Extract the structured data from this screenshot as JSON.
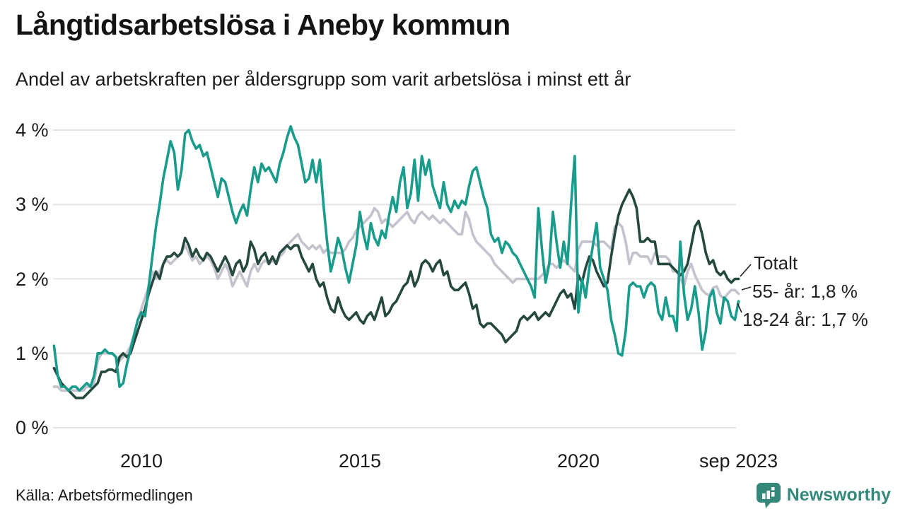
{
  "header": {
    "title": "Långtidsarbetslösa i Aneby kommun",
    "subtitle": "Andel av arbetskraften per åldersgrupp som varit arbetslösa i minst ett år"
  },
  "footer": {
    "source": "Källa: Arbetsförmedlingen",
    "logo_text": "Newsworthy",
    "logo_color": "#35897b"
  },
  "colors": {
    "total": "#26493f",
    "age55": "#c4c2cd",
    "age1824": "#1a9c8c",
    "grid": "#e4e4e4",
    "text": "#1a1a1a"
  },
  "chart_data": {
    "type": "line",
    "title": "Långtidsarbetslösa i Aneby kommun",
    "subtitle": "Andel av arbetskraften per åldersgrupp som varit arbetslösa i minst ett år",
    "x_unit": "month",
    "x_start": "2008-01",
    "x_end": "2023-09",
    "ylim": [
      0,
      4.3
    ],
    "grid": true,
    "legend_position": "end-of-line labels, right side",
    "yticks": [
      {
        "value": 0,
        "label": "0 %"
      },
      {
        "value": 1,
        "label": "1 %"
      },
      {
        "value": 2,
        "label": "2 %"
      },
      {
        "value": 3,
        "label": "3 %"
      },
      {
        "value": 4,
        "label": "4 %"
      }
    ],
    "xticks": [
      {
        "month_index": 24,
        "label": "2010"
      },
      {
        "month_index": 84,
        "label": "2015"
      },
      {
        "month_index": 144,
        "label": "2020"
      },
      {
        "month_index": 188,
        "label": "sep 2023"
      }
    ],
    "series": [
      {
        "name": "55- år",
        "end_label": "55- år: 1,8 %",
        "last_value": "1,8 %",
        "color": "#c4c2cd",
        "values": [
          0.55,
          0.55,
          0.5,
          0.5,
          0.5,
          0.5,
          0.5,
          0.5,
          0.5,
          0.55,
          0.55,
          0.6,
          0.9,
          1.0,
          1.0,
          1.0,
          1.0,
          0.95,
          0.9,
          0.95,
          1.0,
          1.1,
          1.25,
          1.45,
          1.6,
          1.75,
          1.9,
          2.1,
          2.0,
          2.1,
          2.2,
          2.25,
          2.2,
          2.25,
          2.3,
          2.35,
          2.45,
          2.35,
          2.25,
          2.3,
          2.2,
          2.25,
          2.3,
          2.25,
          2.15,
          2.0,
          2.1,
          2.2,
          2.1,
          1.9,
          2.0,
          2.1,
          2.0,
          1.9,
          2.1,
          2.2,
          2.1,
          2.2,
          2.25,
          2.2,
          2.25,
          2.2,
          2.3,
          2.35,
          2.45,
          2.5,
          2.55,
          2.6,
          2.5,
          2.45,
          2.4,
          2.45,
          2.4,
          2.45,
          2.35,
          2.4,
          2.35,
          2.35,
          2.35,
          2.35,
          2.4,
          2.5,
          2.55,
          2.65,
          2.7,
          2.75,
          2.8,
          2.85,
          2.95,
          2.9,
          2.75,
          2.8,
          2.75,
          2.7,
          2.75,
          2.8,
          2.85,
          2.9,
          2.8,
          2.75,
          2.85,
          2.9,
          2.85,
          2.8,
          2.85,
          2.8,
          2.75,
          2.8,
          2.75,
          2.7,
          2.65,
          2.6,
          2.6,
          2.9,
          2.8,
          2.6,
          2.5,
          2.45,
          2.4,
          2.35,
          2.3,
          2.2,
          2.15,
          2.1,
          2.05,
          2.0,
          1.95,
          2.0,
          2.0,
          2.0,
          2.0,
          2.0,
          2.0,
          2.0,
          2.05,
          2.1,
          2.2,
          2.2,
          2.15,
          2.2,
          2.25,
          2.2,
          2.15,
          2.1,
          2.4,
          2.5,
          2.5,
          2.5,
          2.5,
          2.45,
          2.5,
          2.5,
          2.45,
          2.4,
          2.7,
          2.75,
          2.7,
          2.5,
          2.2,
          2.35,
          2.35,
          2.3,
          2.3,
          2.3,
          2.2,
          2.35,
          2.3,
          2.3,
          2.3,
          2.25,
          2.1,
          2.1,
          2.0,
          1.9,
          2.1,
          2.2,
          2.05,
          1.95,
          1.85,
          1.8,
          1.78,
          1.88,
          1.9,
          1.78,
          1.73,
          1.8,
          1.85,
          1.85,
          1.8
        ]
      },
      {
        "name": "Totalt",
        "end_label": "Totalt",
        "color": "#26493f",
        "values": [
          0.8,
          0.7,
          0.6,
          0.55,
          0.5,
          0.45,
          0.4,
          0.4,
          0.4,
          0.45,
          0.5,
          0.55,
          0.6,
          0.75,
          0.75,
          0.78,
          0.78,
          0.75,
          0.95,
          1.0,
          0.95,
          1.0,
          1.15,
          1.3,
          1.45,
          1.6,
          1.8,
          1.95,
          2.1,
          2.0,
          2.2,
          2.3,
          2.3,
          2.35,
          2.3,
          2.35,
          2.55,
          2.45,
          2.3,
          2.4,
          2.3,
          2.25,
          2.35,
          2.3,
          2.2,
          2.1,
          2.2,
          2.3,
          2.2,
          2.05,
          2.2,
          2.25,
          2.1,
          2.2,
          2.5,
          2.4,
          2.2,
          2.3,
          2.35,
          2.2,
          2.3,
          2.2,
          2.35,
          2.4,
          2.45,
          2.4,
          2.45,
          2.45,
          2.3,
          2.2,
          2.1,
          2.2,
          2.0,
          1.9,
          1.95,
          1.75,
          1.6,
          1.55,
          1.75,
          1.6,
          1.5,
          1.45,
          1.5,
          1.55,
          1.45,
          1.4,
          1.5,
          1.55,
          1.45,
          1.6,
          1.75,
          1.5,
          1.55,
          1.65,
          1.7,
          1.8,
          1.9,
          1.95,
          2.1,
          1.9,
          2.0,
          2.2,
          2.25,
          2.2,
          2.1,
          2.2,
          2.25,
          2.05,
          2.1,
          1.9,
          1.85,
          1.85,
          1.9,
          1.95,
          1.8,
          1.6,
          1.65,
          1.4,
          1.35,
          1.4,
          1.4,
          1.35,
          1.3,
          1.25,
          1.15,
          1.2,
          1.25,
          1.3,
          1.45,
          1.5,
          1.45,
          1.5,
          1.55,
          1.45,
          1.5,
          1.55,
          1.5,
          1.6,
          1.7,
          1.8,
          1.85,
          1.75,
          1.8,
          1.6,
          2.05,
          1.95,
          2.15,
          2.3,
          2.25,
          2.1,
          2.0,
          1.9,
          1.95,
          2.3,
          2.6,
          2.85,
          3.0,
          3.1,
          3.2,
          3.1,
          2.95,
          2.5,
          2.5,
          2.55,
          2.5,
          2.5,
          2.2,
          2.2,
          2.2,
          2.2,
          2.15,
          2.1,
          2.05,
          2.1,
          2.2,
          2.45,
          2.7,
          2.78,
          2.6,
          2.35,
          2.2,
          2.25,
          2.1,
          2.05,
          2.1,
          2.0,
          1.95,
          2.0,
          2.0
        ]
      },
      {
        "name": "18-24 år",
        "end_label": "18-24 år: 1,7 %",
        "last_value": "1,7 %",
        "color": "#1a9c8c",
        "values": [
          1.1,
          0.7,
          0.55,
          0.55,
          0.5,
          0.55,
          0.55,
          0.5,
          0.55,
          0.6,
          0.55,
          0.7,
          1.0,
          1.0,
          1.05,
          1.0,
          1.0,
          0.95,
          0.55,
          0.6,
          0.85,
          1.05,
          1.25,
          1.45,
          1.55,
          1.5,
          1.9,
          2.3,
          2.7,
          3.0,
          3.35,
          3.6,
          3.85,
          3.7,
          3.2,
          3.45,
          3.95,
          4.0,
          3.85,
          3.75,
          3.8,
          3.65,
          3.7,
          3.5,
          3.3,
          3.1,
          3.35,
          3.3,
          3.1,
          2.9,
          2.75,
          2.9,
          3.0,
          2.85,
          3.2,
          3.5,
          3.3,
          3.55,
          3.45,
          3.5,
          3.4,
          3.3,
          3.55,
          3.7,
          3.9,
          4.05,
          3.9,
          3.8,
          3.55,
          3.3,
          3.35,
          3.6,
          3.3,
          3.6,
          3.0,
          2.5,
          2.1,
          2.3,
          2.55,
          2.4,
          2.15,
          1.95,
          2.2,
          2.45,
          2.9,
          2.6,
          2.4,
          2.75,
          2.55,
          2.45,
          2.65,
          2.55,
          2.85,
          3.1,
          2.9,
          3.3,
          3.5,
          2.95,
          3.15,
          3.6,
          3.05,
          3.65,
          3.4,
          3.6,
          3.25,
          3.1,
          2.95,
          3.3,
          3.0,
          2.9,
          3.05,
          2.95,
          3.05,
          3.0,
          3.25,
          3.45,
          3.5,
          3.3,
          3.1,
          2.95,
          2.6,
          2.5,
          2.55,
          2.35,
          2.5,
          2.45,
          2.35,
          2.3,
          2.2,
          2.1,
          2.0,
          1.9,
          1.75,
          2.95,
          2.4,
          1.95,
          2.2,
          2.9,
          2.5,
          2.15,
          2.5,
          2.2,
          3.0,
          3.65,
          1.55,
          2.0,
          1.75,
          2.15,
          2.45,
          2.75,
          2.15,
          2.0,
          1.85,
          1.45,
          1.25,
          1.0,
          0.97,
          1.3,
          1.9,
          1.95,
          1.9,
          1.9,
          1.75,
          1.9,
          1.95,
          1.9,
          1.55,
          1.45,
          1.75,
          1.5,
          1.5,
          1.3,
          2.5,
          1.8,
          1.45,
          1.6,
          1.9,
          1.55,
          1.05,
          1.3,
          1.75,
          1.85,
          1.55,
          1.4,
          1.75,
          1.7,
          1.5,
          1.45,
          1.7
        ]
      }
    ]
  }
}
